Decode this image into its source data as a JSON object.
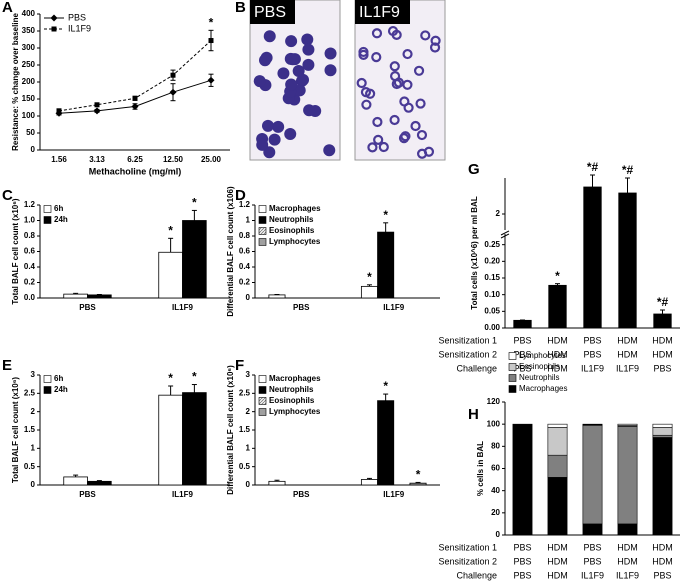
{
  "chart_data": [
    {
      "type": "line",
      "panel": "A",
      "categories": [
        "1.56",
        "3.13",
        "6.25",
        "12.50",
        "25.00"
      ],
      "x_label": "Methacholine (mg/ml)",
      "y_label": "Resistance: % change over baseline",
      "ylim": [
        0,
        400
      ],
      "yticks": [
        0,
        50,
        100,
        150,
        200,
        250,
        300,
        350,
        400
      ],
      "legend": "upper left",
      "series": [
        {
          "name": "PBS",
          "color": "#000000",
          "marker": "diamond",
          "dash": false,
          "values": [
            108,
            115,
            128,
            170,
            205
          ],
          "errors": [
            5,
            4,
            8,
            25,
            18
          ],
          "significance": [
            null,
            null,
            null,
            null,
            null
          ]
        },
        {
          "name": "IL1F9",
          "color": "#000000",
          "marker": "square",
          "dash": true,
          "values": [
            115,
            133,
            152,
            220,
            322
          ],
          "errors": [
            6,
            5,
            6,
            15,
            30
          ],
          "significance": [
            null,
            null,
            null,
            null,
            "*"
          ]
        }
      ]
    },
    {
      "type": "image",
      "panel": "B",
      "labels": [
        "PBS",
        "IL1F9"
      ]
    },
    {
      "type": "bar",
      "panel": "C",
      "categories": [
        "PBS",
        "IL1F9"
      ],
      "y_label": "Total BALF cell count (x10⁶)",
      "ylim": [
        0,
        1.2
      ],
      "yticks": [
        {
          "value": 0,
          "label": "0.0"
        },
        0.2,
        0.4,
        0.6,
        0.8,
        {
          "value": 1,
          "label": "1.0"
        },
        1.2
      ],
      "legend": "upper left",
      "series": [
        {
          "name": "6h",
          "color": "#ffffff",
          "values": [
            0.05,
            0.59
          ],
          "errors": [
            0.01,
            0.18
          ],
          "significance": [
            null,
            "*"
          ]
        },
        {
          "name": "24h",
          "color": "#000000",
          "values": [
            0.04,
            1.0
          ],
          "errors": [
            0.005,
            0.13
          ],
          "significance": [
            null,
            "*"
          ]
        }
      ]
    },
    {
      "type": "bar",
      "panel": "D",
      "categories": [
        "PBS",
        "IL1F9"
      ],
      "y_label": "Differential BALF cell count (x106)",
      "ylim": [
        0,
        1.2
      ],
      "yticks": [
        0,
        0.2,
        0.4,
        0.6,
        0.8,
        1,
        1.2
      ],
      "legend": "upper left",
      "series": [
        {
          "name": "Macrophages",
          "color": "#ffffff",
          "values": [
            0.04,
            0.15
          ],
          "errors": [
            0.005,
            0.02
          ],
          "significance": [
            null,
            "*"
          ]
        },
        {
          "name": "Neutrophils",
          "color": "#000000",
          "values": [
            0.0,
            0.85
          ],
          "errors": [
            0,
            0.12
          ],
          "significance": [
            null,
            "*"
          ]
        },
        {
          "name": "Eosinophils",
          "color": "#e0e0e0",
          "hatch": true,
          "values": [
            0.0,
            0.0
          ],
          "errors": [
            0,
            0
          ],
          "significance": [
            null,
            null
          ]
        },
        {
          "name": "Lymphocytes",
          "color": "#a0a0a0",
          "values": [
            0.0,
            0.0
          ],
          "errors": [
            0,
            0
          ],
          "significance": [
            null,
            null
          ]
        }
      ]
    },
    {
      "type": "bar",
      "panel": "E",
      "categories": [
        "PBS",
        "IL1F9"
      ],
      "y_label": "Total BALF cell count (x10⁶)",
      "ylim": [
        0,
        3
      ],
      "yticks": [
        0,
        0.5,
        1,
        1.5,
        2,
        2.5,
        3
      ],
      "legend": "upper left",
      "series": [
        {
          "name": "6h",
          "color": "#ffffff",
          "values": [
            0.22,
            2.45
          ],
          "errors": [
            0.05,
            0.25
          ],
          "significance": [
            null,
            "*"
          ]
        },
        {
          "name": "24h",
          "color": "#000000",
          "values": [
            0.1,
            2.52
          ],
          "errors": [
            0.02,
            0.22
          ],
          "significance": [
            null,
            "*"
          ]
        }
      ]
    },
    {
      "type": "bar",
      "panel": "F",
      "categories": [
        "PBS",
        "IL1F9"
      ],
      "y_label": "Differential BALF cell count (x10⁶)",
      "ylim": [
        0,
        3
      ],
      "yticks": [
        0,
        0.5,
        1,
        1.5,
        2,
        2.5,
        3
      ],
      "legend": "upper left",
      "series": [
        {
          "name": "Macrophages",
          "color": "#ffffff",
          "values": [
            0.1,
            0.15
          ],
          "errors": [
            0.03,
            0.03
          ],
          "significance": [
            null,
            null
          ]
        },
        {
          "name": "Neutrophils",
          "color": "#000000",
          "values": [
            0.0,
            2.3
          ],
          "errors": [
            0,
            0.18
          ],
          "significance": [
            null,
            "*"
          ]
        },
        {
          "name": "Eosinophils",
          "color": "#e0e0e0",
          "hatch": true,
          "values": [
            0.0,
            0.0
          ],
          "errors": [
            0,
            0
          ],
          "significance": [
            null,
            null
          ]
        },
        {
          "name": "Lymphocytes",
          "color": "#a0a0a0",
          "values": [
            0.0,
            0.05
          ],
          "errors": [
            0,
            0.02
          ],
          "significance": [
            null,
            "*"
          ]
        }
      ]
    },
    {
      "type": "bar",
      "panel": "G",
      "y_label": "Total cells (x10^6) per ml BAL",
      "ylim": [
        0,
        2.6
      ],
      "axis_break": [
        0.27,
        1.8
      ],
      "yticks": [
        {
          "value": 0,
          "label": "0.00"
        },
        0.05,
        {
          "value": 0.1,
          "label": "0.10"
        },
        0.15,
        {
          "value": 0.2,
          "label": "0.20"
        },
        0.25,
        2
      ],
      "table": [
        {
          "label": "Sensitization 1",
          "values": [
            "PBS",
            "HDM",
            "PBS",
            "HDM",
            "HDM"
          ]
        },
        {
          "label": "Sensitization 2",
          "values": [
            "PBS",
            "HDM",
            "PBS",
            "HDM",
            "HDM"
          ]
        },
        {
          "label": "Challenge",
          "values": [
            "PBS",
            "HDM",
            "IL1F9",
            "IL1F9",
            "PBS"
          ]
        }
      ],
      "series": [
        {
          "color": "#000000",
          "values": [
            0.023,
            0.128,
            2.45,
            2.35,
            0.042
          ],
          "errors": [
            0.001,
            0.005,
            0.2,
            0.25,
            0.012
          ],
          "significance": [
            null,
            "*",
            "*#",
            "*#",
            "*#"
          ]
        }
      ]
    },
    {
      "type": "stacked_bar",
      "panel": "H",
      "y_label": "% cells in BAL",
      "ylim": [
        0,
        120
      ],
      "yticks": [
        0,
        20,
        40,
        60,
        80,
        100,
        120
      ],
      "legend": "above",
      "legend_reversed": true,
      "table": [
        {
          "label": "Sensitization 1",
          "values": [
            "PBS",
            "HDM",
            "PBS",
            "HDM",
            "HDM"
          ]
        },
        {
          "label": "Sensitization 2",
          "values": [
            "PBS",
            "HDM",
            "PBS",
            "HDM",
            "HDM"
          ]
        },
        {
          "label": "Challenge",
          "values": [
            "PBS",
            "HDM",
            "IL1F9",
            "IL1F9",
            "PBS"
          ]
        }
      ],
      "series": [
        {
          "name": "Macrophages",
          "color": "#000000",
          "values": [
            100,
            52,
            10,
            10,
            88
          ]
        },
        {
          "name": "Neutrophils",
          "color": "#808080",
          "values": [
            0,
            20,
            89,
            88,
            2
          ]
        },
        {
          "name": "Eosinophils",
          "color": "#c8c8c8",
          "values": [
            0,
            25,
            0.5,
            1,
            7
          ]
        },
        {
          "name": "Lymphocytes",
          "color": "#ffffff",
          "values": [
            0,
            3,
            0.5,
            1,
            3
          ]
        }
      ]
    }
  ]
}
